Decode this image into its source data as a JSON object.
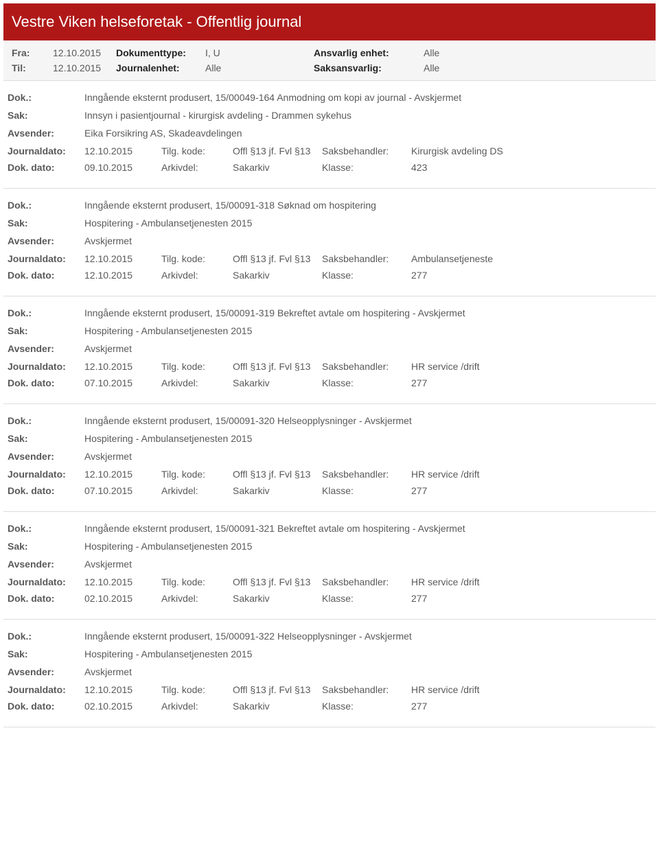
{
  "header": {
    "title": "Vestre Viken helseforetak - Offentlig journal"
  },
  "filters": {
    "row1": {
      "l1": "Fra:",
      "v1": "12.10.2015",
      "l2": "Dokumenttype:",
      "v2": "I, U",
      "l3": "Ansvarlig enhet:",
      "v3": "Alle"
    },
    "row2": {
      "l1": "Til:",
      "v1": "12.10.2015",
      "l2": "Journalenhet:",
      "v2": "Alle",
      "l3": "Saksansvarlig:",
      "v3": "Alle"
    }
  },
  "labels": {
    "dok": "Dok.:",
    "sak": "Sak:",
    "avsender": "Avsender:",
    "journaldato": "Journaldato:",
    "dokdato": "Dok. dato:",
    "tilgkode": "Tilg. kode:",
    "arkivdel": "Arkivdel:",
    "saksbehandler": "Saksbehandler:",
    "klasse": "Klasse:"
  },
  "entries": [
    {
      "dok": "Inngående eksternt produsert, 15/00049-164 Anmodning om kopi av journal - Avskjermet",
      "sak": "Innsyn i pasientjournal - kirurgisk avdeling - Drammen sykehus",
      "avsender": "Eika Forsikring AS, Skadeavdelingen",
      "journaldato": "12.10.2015",
      "tilgkode": "Offl §13 jf. Fvl §13",
      "saksbehandler": "Kirurgisk avdeling DS",
      "dokdato": "09.10.2015",
      "arkivdel": "Sakarkiv",
      "klasse": "423"
    },
    {
      "dok": "Inngående eksternt produsert, 15/00091-318 Søknad om hospitering",
      "sak": "Hospitering - Ambulansetjenesten 2015",
      "avsender": "Avskjermet",
      "journaldato": "12.10.2015",
      "tilgkode": "Offl §13 jf. Fvl §13",
      "saksbehandler": "Ambulansetjeneste",
      "dokdato": "12.10.2015",
      "arkivdel": "Sakarkiv",
      "klasse": "277"
    },
    {
      "dok": "Inngående eksternt produsert, 15/00091-319 Bekreftet avtale om hospitering - Avskjermet",
      "sak": "Hospitering - Ambulansetjenesten 2015",
      "avsender": "Avskjermet",
      "journaldato": "12.10.2015",
      "tilgkode": "Offl §13 jf. Fvl §13",
      "saksbehandler": "HR service /drift",
      "dokdato": "07.10.2015",
      "arkivdel": "Sakarkiv",
      "klasse": "277"
    },
    {
      "dok": "Inngående eksternt produsert, 15/00091-320 Helseopplysninger - Avskjermet",
      "sak": "Hospitering - Ambulansetjenesten 2015",
      "avsender": "Avskjermet",
      "journaldato": "12.10.2015",
      "tilgkode": "Offl §13 jf. Fvl §13",
      "saksbehandler": "HR service /drift",
      "dokdato": "07.10.2015",
      "arkivdel": "Sakarkiv",
      "klasse": "277"
    },
    {
      "dok": "Inngående eksternt produsert, 15/00091-321 Bekreftet avtale om hospitering - Avskjermet",
      "sak": "Hospitering - Ambulansetjenesten 2015",
      "avsender": "Avskjermet",
      "journaldato": "12.10.2015",
      "tilgkode": "Offl §13 jf. Fvl §13",
      "saksbehandler": "HR service /drift",
      "dokdato": "02.10.2015",
      "arkivdel": "Sakarkiv",
      "klasse": "277"
    },
    {
      "dok": "Inngående eksternt produsert, 15/00091-322 Helseopplysninger - Avskjermet",
      "sak": "Hospitering - Ambulansetjenesten 2015",
      "avsender": "Avskjermet",
      "journaldato": "12.10.2015",
      "tilgkode": "Offl §13 jf. Fvl §13",
      "saksbehandler": "HR service /drift",
      "dokdato": "02.10.2015",
      "arkivdel": "Sakarkiv",
      "klasse": "277"
    }
  ]
}
